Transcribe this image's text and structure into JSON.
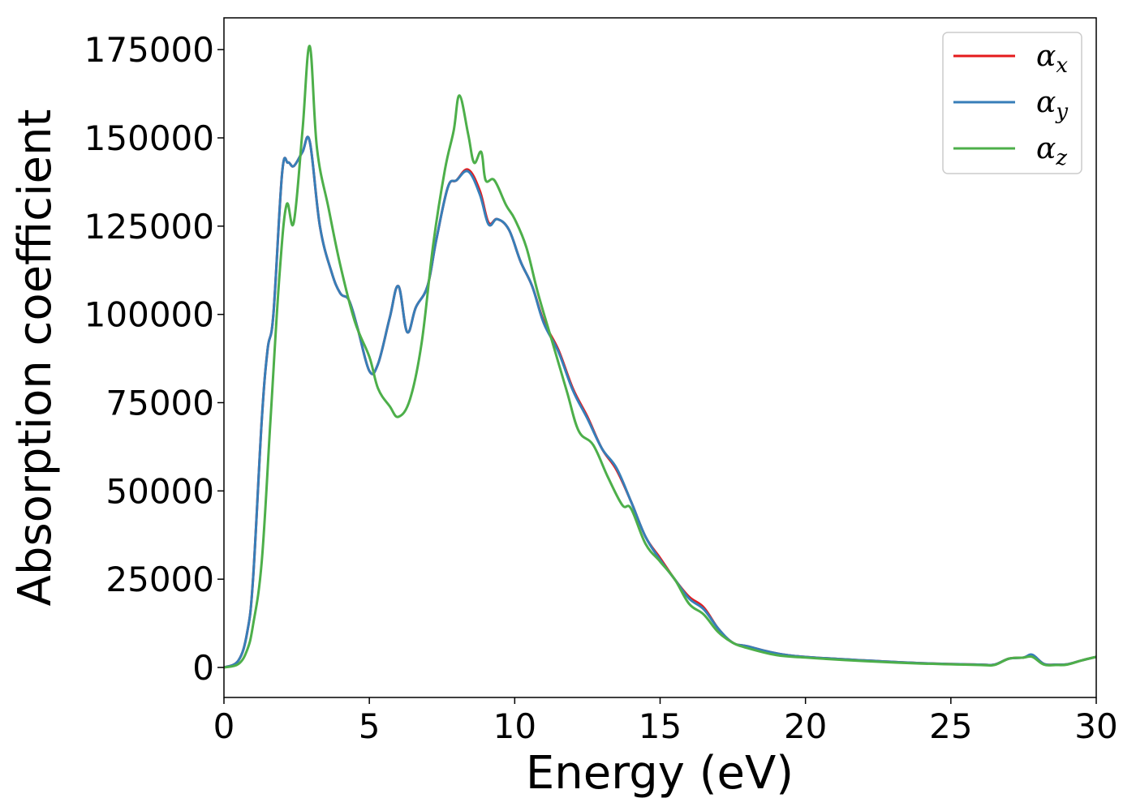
{
  "chart_data": {
    "type": "line",
    "xlabel": "Energy (eV)",
    "ylabel": "Absorption coefficient",
    "xlim": [
      0,
      30
    ],
    "ylim": [
      -8500,
      184000
    ],
    "xticks": [
      0,
      5,
      10,
      15,
      20,
      25,
      30
    ],
    "xtick_labels": [
      "0",
      "5",
      "10",
      "15",
      "20",
      "25",
      "30"
    ],
    "yticks": [
      0,
      25000,
      50000,
      75000,
      100000,
      125000,
      150000,
      175000
    ],
    "ytick_labels": [
      "0",
      "25000",
      "50000",
      "75000",
      "100000",
      "125000",
      "150000",
      "175000"
    ],
    "grid": false,
    "legend_position": "top-right",
    "series": [
      {
        "name": "α",
        "subscript": "x",
        "color": "#e41a1c",
        "x": [
          0,
          0.5,
          0.8,
          1.0,
          1.3,
          1.5,
          1.7,
          2.0,
          2.2,
          2.4,
          2.7,
          2.95,
          3.3,
          3.7,
          4.0,
          4.3,
          4.6,
          5.0,
          5.3,
          5.7,
          6.0,
          6.3,
          6.6,
          7.0,
          7.3,
          7.7,
          8.0,
          8.4,
          8.8,
          9.1,
          9.4,
          9.8,
          10.2,
          10.6,
          11.0,
          11.5,
          12.0,
          12.5,
          13.0,
          13.5,
          14.0,
          14.5,
          15.0,
          15.5,
          16.0,
          16.5,
          17.0,
          17.5,
          18.0,
          19.0,
          20.0,
          22.0,
          24.0,
          26.0,
          26.5,
          27.0,
          27.5,
          27.8,
          28.2,
          28.6,
          29.0,
          29.5,
          30.0
        ],
        "y": [
          0,
          2000,
          10000,
          25000,
          70000,
          90000,
          100000,
          140000,
          143000,
          142000,
          146000,
          149000,
          125000,
          112000,
          106000,
          104000,
          96000,
          84000,
          86000,
          99000,
          108000,
          95000,
          102000,
          108000,
          121000,
          136000,
          138000,
          141000,
          135000,
          126000,
          127000,
          124000,
          115000,
          108000,
          98000,
          90000,
          79000,
          71000,
          62000,
          56000,
          47000,
          37000,
          31000,
          25000,
          20000,
          17000,
          11000,
          7000,
          6000,
          4000,
          3000,
          2000,
          1200,
          800,
          800,
          2500,
          2800,
          3500,
          1000,
          800,
          900,
          2000,
          3000
        ]
      },
      {
        "name": "α",
        "subscript": "y",
        "color": "#377eb8",
        "x": [
          0,
          0.5,
          0.8,
          1.0,
          1.3,
          1.5,
          1.7,
          2.0,
          2.2,
          2.4,
          2.7,
          2.95,
          3.3,
          3.7,
          4.0,
          4.3,
          4.6,
          5.0,
          5.3,
          5.7,
          6.0,
          6.3,
          6.6,
          7.0,
          7.3,
          7.7,
          8.0,
          8.4,
          8.8,
          9.1,
          9.4,
          9.8,
          10.2,
          10.6,
          11.0,
          11.5,
          12.0,
          12.5,
          13.0,
          13.5,
          14.0,
          14.5,
          15.0,
          15.5,
          16.0,
          16.5,
          17.0,
          17.5,
          18.0,
          19.0,
          20.0,
          22.0,
          24.0,
          26.0,
          26.5,
          27.0,
          27.5,
          27.8,
          28.2,
          28.6,
          29.0,
          29.5,
          30.0
        ],
        "y": [
          0,
          2000,
          10000,
          25000,
          70000,
          90000,
          100000,
          140000,
          143000,
          142000,
          146000,
          149000,
          125000,
          112000,
          106000,
          104000,
          96000,
          84000,
          86000,
          99000,
          108000,
          95000,
          102000,
          108000,
          121000,
          136000,
          138000,
          140500,
          134000,
          125500,
          127000,
          124000,
          115000,
          108000,
          97500,
          89500,
          78500,
          70500,
          62000,
          56500,
          47000,
          37000,
          30500,
          25000,
          19500,
          16500,
          11000,
          7000,
          6000,
          4000,
          3000,
          2000,
          1200,
          800,
          800,
          2500,
          2800,
          3600,
          1000,
          800,
          900,
          2000,
          3000
        ]
      },
      {
        "name": "α",
        "subscript": "z",
        "color": "#4daf4a",
        "x": [
          0,
          0.5,
          0.8,
          1.0,
          1.3,
          1.6,
          1.9,
          2.15,
          2.4,
          2.7,
          2.95,
          3.2,
          3.6,
          4.0,
          4.5,
          5.0,
          5.3,
          5.7,
          6.0,
          6.4,
          6.8,
          7.2,
          7.6,
          7.9,
          8.1,
          8.4,
          8.6,
          8.85,
          9.0,
          9.3,
          9.7,
          10.0,
          10.4,
          10.8,
          11.3,
          11.8,
          12.2,
          12.7,
          13.2,
          13.7,
          14.0,
          14.5,
          15.0,
          15.5,
          16.0,
          16.5,
          17.0,
          17.5,
          18.0,
          19.0,
          20.0,
          22.0,
          24.0,
          26.0,
          26.5,
          27.0,
          27.5,
          27.8,
          28.2,
          28.6,
          29.0,
          29.5,
          30.0
        ],
        "y": [
          0,
          1000,
          5000,
          12000,
          30000,
          70000,
          110000,
          131000,
          126000,
          152000,
          176000,
          147000,
          130000,
          114000,
          98000,
          88000,
          79000,
          74000,
          71000,
          76000,
          92000,
          120000,
          141000,
          152000,
          162000,
          151000,
          143000,
          146000,
          138000,
          138000,
          131000,
          127000,
          119000,
          106000,
          92000,
          78000,
          67000,
          63000,
          54000,
          46000,
          45000,
          35000,
          30000,
          25000,
          18000,
          15000,
          10000,
          7000,
          5500,
          3500,
          2800,
          1800,
          1100,
          700,
          700,
          2500,
          2800,
          3000,
          800,
          700,
          800,
          2000,
          3000
        ]
      }
    ]
  }
}
